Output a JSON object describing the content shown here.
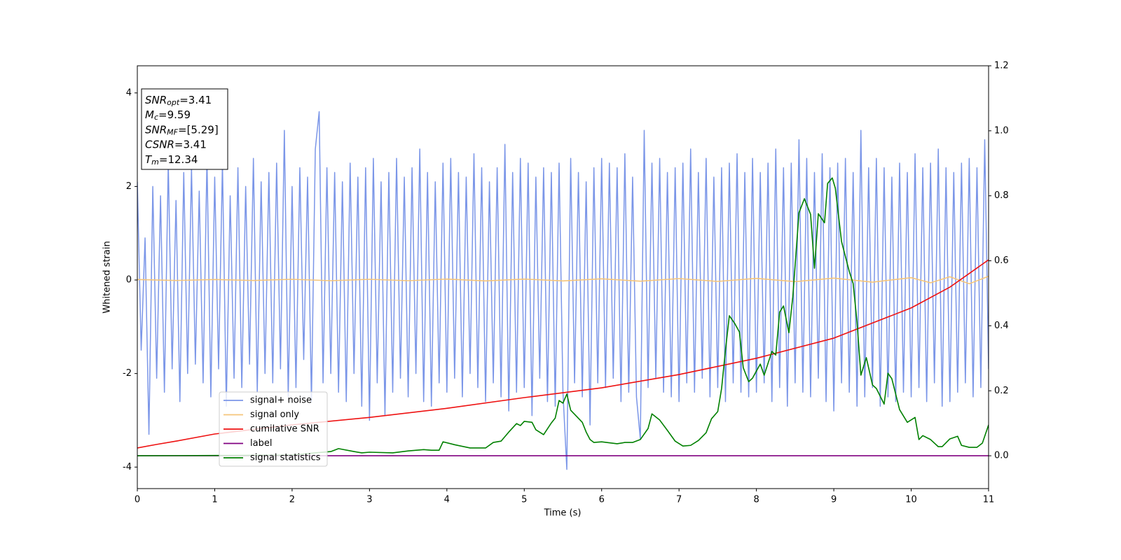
{
  "chart_data": {
    "type": "line",
    "xlabel": "Time (s)",
    "ylabel": "Whitened strain",
    "xlim": [
      0,
      11
    ],
    "xticks": [
      0,
      1,
      2,
      3,
      4,
      5,
      6,
      7,
      8,
      9,
      10,
      11
    ],
    "ylim": [
      -4.46,
      4.58
    ],
    "yticks": [
      -4,
      -2,
      0,
      2,
      4
    ],
    "y2lim": [
      -0.101,
      1.2
    ],
    "y2ticks": [
      {
        "value": 0,
        "label": "0.0"
      },
      {
        "value": 0.2,
        "label": "0.2"
      },
      {
        "value": 0.4,
        "label": "0.4"
      },
      {
        "value": 0.6,
        "label": "0.6"
      },
      {
        "value": 0.8,
        "label": "0.8"
      },
      {
        "value": 1.0,
        "label": "1.0"
      },
      {
        "value": 1.2,
        "label": "1.2"
      }
    ],
    "legend": "lower left",
    "annotation": [
      {
        "main": "SNR",
        "sub": "opt",
        "rest": "=3.41"
      },
      {
        "main": "M",
        "sub": "c",
        "rest": "=9.59"
      },
      {
        "main": "SNR",
        "sub": "MF",
        "rest": "=[5.29]"
      },
      {
        "main": "CSNR",
        "rest": "=3.41"
      },
      {
        "main": "T",
        "sub": "m",
        "rest": "=12.34"
      }
    ],
    "series": [
      {
        "name": "signal+ noise",
        "color": "#7b96e8",
        "x": [
          0,
          0.05,
          0.1,
          0.15,
          0.2,
          0.25,
          0.3,
          0.35,
          0.4,
          0.45,
          0.5,
          0.55,
          0.6,
          0.65,
          0.7,
          0.75,
          0.8,
          0.85,
          0.9,
          0.95,
          1,
          1.05,
          1.1,
          1.15,
          1.2,
          1.25,
          1.3,
          1.35,
          1.4,
          1.45,
          1.5,
          1.55,
          1.6,
          1.65,
          1.7,
          1.75,
          1.8,
          1.85,
          1.9,
          1.95,
          2,
          2.05,
          2.1,
          2.15,
          2.2,
          2.25,
          2.3,
          2.35,
          2.4,
          2.45,
          2.5,
          2.55,
          2.6,
          2.65,
          2.7,
          2.75,
          2.8,
          2.85,
          2.9,
          2.95,
          3,
          3.05,
          3.1,
          3.15,
          3.2,
          3.25,
          3.3,
          3.35,
          3.4,
          3.45,
          3.5,
          3.55,
          3.6,
          3.65,
          3.7,
          3.75,
          3.8,
          3.85,
          3.9,
          3.95,
          4,
          4.05,
          4.1,
          4.15,
          4.2,
          4.25,
          4.3,
          4.35,
          4.4,
          4.45,
          4.5,
          4.55,
          4.6,
          4.65,
          4.7,
          4.75,
          4.8,
          4.85,
          4.9,
          4.95,
          5,
          5.05,
          5.1,
          5.15,
          5.2,
          5.25,
          5.3,
          5.35,
          5.4,
          5.45,
          5.5,
          5.55,
          5.6,
          5.65,
          5.7,
          5.75,
          5.8,
          5.85,
          5.9,
          5.95,
          6,
          6.05,
          6.1,
          6.15,
          6.2,
          6.25,
          6.3,
          6.35,
          6.4,
          6.45,
          6.5,
          6.55,
          6.6,
          6.65,
          6.7,
          6.75,
          6.8,
          6.85,
          6.9,
          6.95,
          7,
          7.05,
          7.1,
          7.15,
          7.2,
          7.25,
          7.3,
          7.35,
          7.4,
          7.45,
          7.5,
          7.55,
          7.6,
          7.65,
          7.7,
          7.75,
          7.8,
          7.85,
          7.9,
          7.95,
          8,
          8.05,
          8.1,
          8.15,
          8.2,
          8.25,
          8.3,
          8.35,
          8.4,
          8.45,
          8.5,
          8.55,
          8.6,
          8.65,
          8.7,
          8.75,
          8.8,
          8.85,
          8.9,
          8.95,
          9,
          9.05,
          9.1,
          9.15,
          9.2,
          9.25,
          9.3,
          9.35,
          9.4,
          9.45,
          9.5,
          9.55,
          9.6,
          9.65,
          9.7,
          9.75,
          9.8,
          9.85,
          9.9,
          9.95,
          10,
          10.05,
          10.1,
          10.15,
          10.2,
          10.25,
          10.3,
          10.35,
          10.4,
          10.45,
          10.5,
          10.55,
          10.6,
          10.65,
          10.7,
          10.75,
          10.8,
          10.85,
          10.9,
          10.95,
          11
        ],
        "values": [
          2.1,
          -1.5,
          0.9,
          -3.3,
          2.0,
          -2.1,
          1.8,
          -2.4,
          2.5,
          -1.9,
          1.7,
          -2.6,
          2.3,
          -2.0,
          2.4,
          -1.8,
          1.9,
          -2.2,
          2.6,
          -2.5,
          2.2,
          -1.9,
          2.5,
          -2.7,
          1.8,
          -2.1,
          2.4,
          -2.3,
          2.0,
          -1.8,
          2.6,
          -2.4,
          2.1,
          -2.0,
          2.3,
          -2.2,
          2.5,
          -1.9,
          3.2,
          -2.5,
          2.0,
          -2.3,
          2.4,
          -1.7,
          2.2,
          -2.6,
          2.8,
          3.6,
          -2.2,
          2.4,
          -2.0,
          2.3,
          -2.4,
          2.1,
          -2.6,
          2.5,
          -2.0,
          2.2,
          -2.7,
          2.4,
          -3.0,
          2.6,
          -2.2,
          2.1,
          -2.9,
          2.3,
          -2.4,
          2.6,
          -2.1,
          2.2,
          -2.5,
          2.4,
          -2.0,
          2.8,
          -2.6,
          2.3,
          -2.7,
          2.1,
          -2.2,
          2.5,
          -2.4,
          2.6,
          -2.1,
          2.3,
          -2.5,
          2.2,
          -2.0,
          2.7,
          -2.3,
          2.4,
          -2.6,
          2.1,
          -2.2,
          2.4,
          -2.5,
          2.9,
          -2.8,
          2.3,
          -2.4,
          2.6,
          -2.3,
          2.5,
          -2.9,
          2.2,
          -2.1,
          2.4,
          -2.6,
          2.3,
          -2.7,
          2.5,
          -2.4,
          -4.05,
          2.6,
          -2.2,
          2.3,
          -2.5,
          2.1,
          -3.1,
          2.4,
          -2.2,
          2.6,
          -2.3,
          2.5,
          -2.1,
          2.4,
          -2.6,
          2.7,
          -2.4,
          2.2,
          -2.5,
          -3.4,
          3.2,
          -2.3,
          2.5,
          -2.1,
          2.6,
          -2.4,
          2.3,
          -2.5,
          2.4,
          -2.6,
          2.5,
          -2.2,
          2.8,
          -2.4,
          2.3,
          -2.1,
          2.6,
          -2.5,
          2.2,
          -2.3,
          2.4,
          -2.6,
          2.5,
          -2.2,
          2.7,
          -2.4,
          2.3,
          -2.5,
          2.6,
          -2.4,
          2.3,
          -2.2,
          2.5,
          -2.6,
          2.8,
          -2.3,
          2.4,
          -2.7,
          2.5,
          -2.2,
          3.0,
          -2.4,
          2.6,
          -2.5,
          2.3,
          -2.1,
          2.7,
          -2.6,
          2.4,
          -2.8,
          2.5,
          -2.2,
          2.6,
          -2.4,
          2.3,
          -2.7,
          3.2,
          -2.5,
          2.4,
          -2.3,
          2.6,
          -2.7,
          2.4,
          -2.5,
          2.2,
          -2.6,
          2.5,
          -2.4,
          2.3,
          -2.5,
          2.7,
          -2.3,
          2.4,
          -2.6,
          2.5,
          -2.2,
          2.8,
          -2.7,
          2.4,
          -2.6,
          2.3,
          -2.4,
          2.5,
          -2.2,
          2.6,
          -2.5,
          2.4,
          -2.3,
          3.0,
          -1.9
        ]
      },
      {
        "name": "signal only",
        "color": "#f5c57a",
        "x": [
          0,
          0.5,
          1,
          1.5,
          2,
          2.5,
          3,
          3.5,
          4,
          4.5,
          5,
          5.5,
          6,
          6.5,
          7,
          7.5,
          8,
          8.5,
          9,
          9.5,
          10,
          10.25,
          10.5,
          10.75,
          11
        ],
        "values": [
          0.01,
          -0.01,
          0.01,
          -0.01,
          0.015,
          -0.015,
          0.015,
          -0.015,
          0.02,
          -0.02,
          0.02,
          -0.02,
          0.025,
          -0.025,
          0.03,
          -0.03,
          0.035,
          -0.035,
          0.04,
          -0.045,
          0.05,
          -0.06,
          0.07,
          -0.08,
          0.08
        ]
      },
      {
        "name": "cumilative SNR",
        "color": "#ee1111",
        "axis": "y2",
        "x": [
          0,
          0.25,
          0.5,
          1,
          2,
          3,
          4,
          5,
          6,
          7,
          8,
          9,
          10,
          10.5,
          11
        ],
        "values": [
          0.024,
          0.035,
          0.045,
          0.067,
          0.095,
          0.118,
          0.146,
          0.179,
          0.209,
          0.25,
          0.3,
          0.362,
          0.455,
          0.519,
          0.603
        ]
      },
      {
        "name": "label",
        "color": "#800080",
        "axis": "y2",
        "x": [
          0,
          11
        ],
        "values": [
          0,
          0
        ]
      },
      {
        "name": "signal statistics",
        "color": "#008000",
        "axis": "y2",
        "x": [
          0,
          1,
          2,
          2.3,
          2.5,
          2.6,
          2.8,
          2.9,
          3.0,
          3.3,
          3.5,
          3.7,
          3.8,
          3.9,
          3.95,
          4.1,
          4.3,
          4.5,
          4.6,
          4.7,
          4.8,
          4.9,
          4.95,
          5.0,
          5.1,
          5.15,
          5.25,
          5.35,
          5.4,
          5.45,
          5.5,
          5.55,
          5.6,
          5.75,
          5.8,
          5.85,
          5.9,
          6.0,
          6.2,
          6.3,
          6.4,
          6.5,
          6.6,
          6.65,
          6.75,
          6.85,
          6.95,
          7.05,
          7.15,
          7.25,
          7.35,
          7.42,
          7.5,
          7.55,
          7.6,
          7.65,
          7.72,
          7.78,
          7.83,
          7.9,
          7.95,
          8.0,
          8.05,
          8.1,
          8.2,
          8.25,
          8.3,
          8.35,
          8.42,
          8.47,
          8.55,
          8.62,
          8.7,
          8.75,
          8.8,
          8.88,
          8.92,
          8.98,
          9.02,
          9.1,
          9.2,
          9.25,
          9.3,
          9.35,
          9.42,
          9.5,
          9.55,
          9.65,
          9.7,
          9.75,
          9.85,
          9.95,
          10.05,
          10.1,
          10.15,
          10.25,
          10.35,
          10.4,
          10.5,
          10.6,
          10.65,
          10.75,
          10.85,
          10.92,
          11.0
        ],
        "values": [
          0,
          0.001,
          0.002,
          0.009,
          0.013,
          0.022,
          0.013,
          0.009,
          0.011,
          0.009,
          0.015,
          0.019,
          0.017,
          0.017,
          0.043,
          0.034,
          0.024,
          0.024,
          0.041,
          0.045,
          0.073,
          0.099,
          0.093,
          0.106,
          0.103,
          0.08,
          0.065,
          0.101,
          0.116,
          0.17,
          0.162,
          0.19,
          0.14,
          0.103,
          0.073,
          0.05,
          0.041,
          0.043,
          0.037,
          0.041,
          0.041,
          0.05,
          0.084,
          0.129,
          0.11,
          0.078,
          0.045,
          0.03,
          0.032,
          0.047,
          0.071,
          0.114,
          0.136,
          0.207,
          0.325,
          0.431,
          0.407,
          0.381,
          0.271,
          0.228,
          0.239,
          0.261,
          0.282,
          0.248,
          0.321,
          0.31,
          0.442,
          0.461,
          0.379,
          0.489,
          0.748,
          0.791,
          0.743,
          0.577,
          0.745,
          0.717,
          0.838,
          0.855,
          0.823,
          0.659,
          0.567,
          0.53,
          0.411,
          0.248,
          0.302,
          0.218,
          0.207,
          0.159,
          0.254,
          0.237,
          0.142,
          0.103,
          0.118,
          0.05,
          0.062,
          0.05,
          0.028,
          0.028,
          0.052,
          0.06,
          0.032,
          0.026,
          0.026,
          0.039,
          0.095
        ]
      }
    ]
  }
}
